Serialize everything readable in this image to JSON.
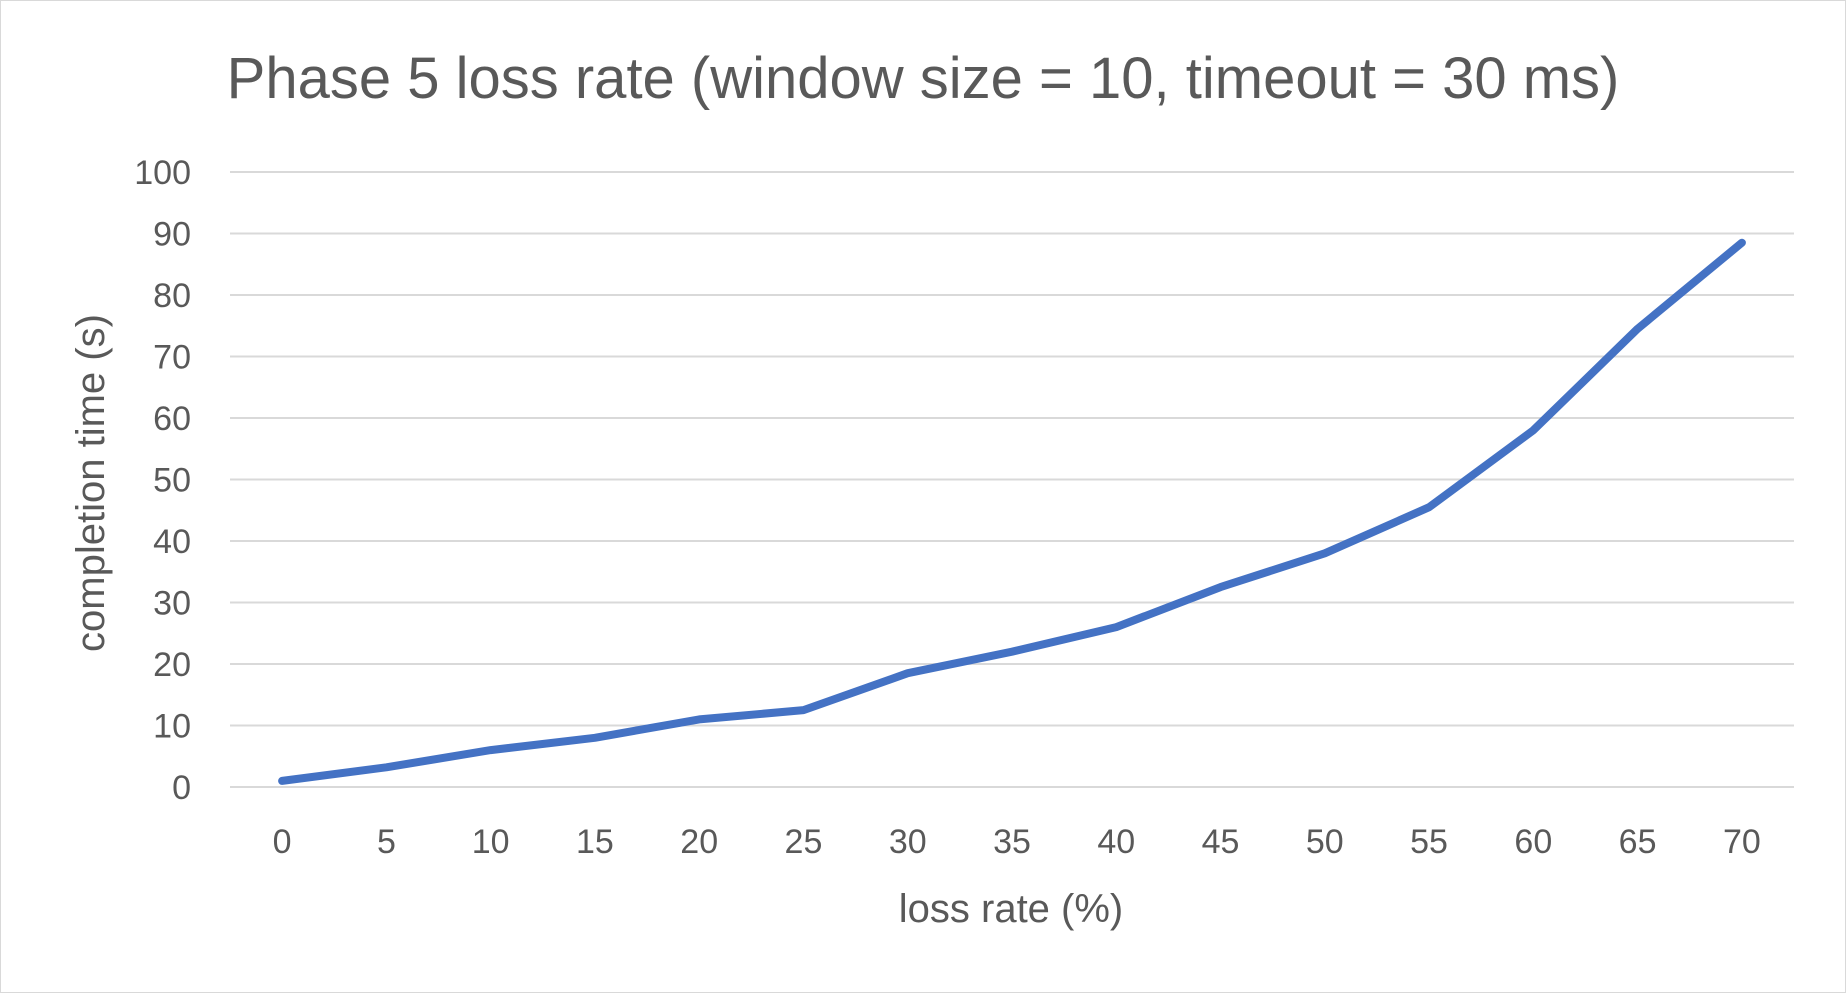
{
  "chart_data": {
    "type": "line",
    "title": "Phase 5 loss rate (window size = 10, timeout = 30 ms)",
    "xlabel": "loss rate (%)",
    "ylabel": "completion time (s)",
    "categories": [
      "0",
      "5",
      "10",
      "15",
      "20",
      "25",
      "30",
      "35",
      "40",
      "45",
      "50",
      "55",
      "60",
      "65",
      "70"
    ],
    "y_ticks": [
      "0",
      "10",
      "20",
      "30",
      "40",
      "50",
      "60",
      "70",
      "80",
      "90",
      "100"
    ],
    "ylim": [
      0,
      100
    ],
    "grid": true,
    "legend": "none",
    "series": [
      {
        "color": "#4472c4",
        "values": [
          1,
          3.2,
          6,
          8,
          11,
          12.5,
          18.5,
          22,
          26,
          32.5,
          38,
          45.5,
          58,
          74.5,
          88.5
        ]
      }
    ]
  }
}
